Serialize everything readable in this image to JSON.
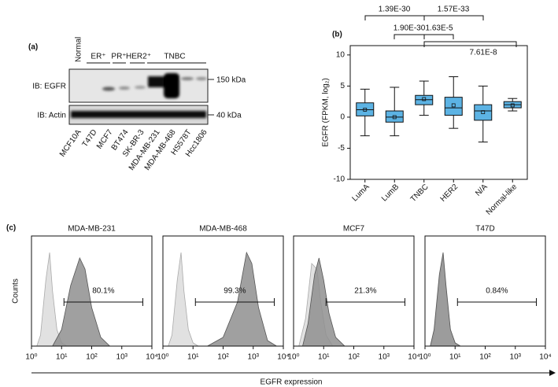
{
  "blot": {
    "label": "(a)",
    "group_top": "Normal",
    "groups": [
      "ER⁺",
      "PR⁺",
      "HER2⁺",
      "TNBC"
    ],
    "rows": [
      "IB: EGFR",
      "IB: Actin"
    ],
    "markers": [
      "150 kDa",
      "40 kDa"
    ],
    "lanes": [
      "MCF10A",
      "T47D",
      "MCF7",
      "BT474",
      "SK-BR-3",
      "MDA-MB-231",
      "MDA-MB-468",
      "HS578T",
      "Hcc1806"
    ]
  },
  "panel_c": {
    "label": "(c)",
    "ylabel": "Counts",
    "xlabel": "EGFR expression"
  },
  "chart_data": [
    {
      "type": "box",
      "panel_label": "(b)",
      "ylabel": "EGFR (FPKM, log₂)",
      "color": "#5cb3e4",
      "categories": [
        "LumA",
        "LumB",
        "TNBC",
        "HER2",
        "N/A",
        "Normal-like"
      ],
      "whisker_low": [
        -3,
        -3,
        0.3,
        -1.8,
        -4,
        1
      ],
      "q1": [
        0.2,
        -0.8,
        2,
        0.3,
        -0.5,
        1.5
      ],
      "median": [
        1.2,
        0,
        2.8,
        1.5,
        1,
        2
      ],
      "q3": [
        2.3,
        1,
        3.5,
        3.2,
        2,
        2.5
      ],
      "whisker_high": [
        4.5,
        4.8,
        5.8,
        6.5,
        5,
        3
      ],
      "mean": [
        1.2,
        0,
        2.9,
        1.9,
        0.8,
        1.9
      ],
      "ylim": [
        -10,
        11.5
      ],
      "yticks": [
        -10,
        -5,
        0,
        5,
        10
      ],
      "annotations": [
        "1.39E-30",
        "1.57E-33",
        "1.90E-30",
        "1.63E-5",
        "7.61E-8"
      ]
    },
    {
      "type": "flow",
      "title": "MDA-MB-231",
      "xlim": [
        1,
        10000
      ],
      "log_x": true,
      "ylim": [
        0,
        100
      ],
      "xticks": [
        {
          "value": 1,
          "label": "10⁰"
        },
        {
          "value": 10,
          "label": "10¹"
        },
        {
          "value": 100,
          "label": "10²"
        },
        {
          "value": 1000,
          "label": "10³"
        },
        {
          "value": 10000,
          "label": "10⁴"
        }
      ],
      "series": [
        {
          "color": "#dcdcdc",
          "x": [
            1.5,
            2,
            3,
            4,
            5,
            7,
            10,
            15
          ],
          "values": [
            0,
            10,
            60,
            85,
            50,
            15,
            3,
            0
          ]
        },
        {
          "color": "#8f8f8f",
          "x": [
            5,
            10,
            20,
            40,
            60,
            100,
            200,
            400
          ],
          "values": [
            0,
            15,
            55,
            80,
            70,
            35,
            8,
            0
          ]
        }
      ],
      "gate": {
        "range": [
          12,
          5000
        ],
        "value": 80.1,
        "value_label": "80.1%"
      }
    },
    {
      "type": "flow",
      "title": "MDA-MB-468",
      "xlim": [
        1,
        10000
      ],
      "log_x": true,
      "ylim": [
        0,
        100
      ],
      "xticks": [
        {
          "value": 1,
          "label": "10⁰"
        },
        {
          "value": 10,
          "label": "10¹"
        },
        {
          "value": 100,
          "label": "10²"
        },
        {
          "value": 1000,
          "label": "10³"
        },
        {
          "value": 10000,
          "label": "10⁴"
        }
      ],
      "series": [
        {
          "color": "#dcdcdc",
          "x": [
            1.5,
            2,
            3,
            4,
            5,
            7,
            10,
            15
          ],
          "values": [
            0,
            10,
            60,
            85,
            50,
            15,
            3,
            0
          ]
        },
        {
          "color": "#8f8f8f",
          "x": [
            30,
            100,
            300,
            600,
            900,
            1500,
            3000,
            6000
          ],
          "values": [
            0,
            8,
            40,
            85,
            75,
            35,
            5,
            0
          ]
        }
      ],
      "gate": {
        "range": [
          12,
          5000
        ],
        "value": 99.3,
        "value_label": "99.3%"
      }
    },
    {
      "type": "flow",
      "title": "MCF7",
      "xlim": [
        1,
        10000
      ],
      "log_x": true,
      "ylim": [
        0,
        100
      ],
      "xticks": [
        {
          "value": 1,
          "label": "10⁰"
        },
        {
          "value": 10,
          "label": "10¹"
        },
        {
          "value": 100,
          "label": "10²"
        },
        {
          "value": 1000,
          "label": "10³"
        },
        {
          "value": 10000,
          "label": "10⁴"
        }
      ],
      "series": [
        {
          "color": "#dcdcdc",
          "x": [
            1.5,
            2.5,
            4,
            6,
            8,
            12,
            20
          ],
          "values": [
            0,
            25,
            75,
            70,
            40,
            10,
            0
          ]
        },
        {
          "color": "#8f8f8f",
          "x": [
            2,
            3,
            5,
            7,
            10,
            15,
            25,
            50
          ],
          "values": [
            0,
            20,
            65,
            80,
            60,
            30,
            8,
            0
          ]
        }
      ],
      "gate": {
        "range": [
          12,
          5000
        ],
        "value": 21.3,
        "value_label": "21.3%"
      }
    },
    {
      "type": "flow",
      "title": "T47D",
      "xlim": [
        1,
        10000
      ],
      "log_x": true,
      "ylim": [
        0,
        100
      ],
      "xticks": [
        {
          "value": 1,
          "label": "10⁰"
        },
        {
          "value": 10,
          "label": "10¹"
        },
        {
          "value": 100,
          "label": "10²"
        },
        {
          "value": 1000,
          "label": "10³"
        },
        {
          "value": 10000,
          "label": "10⁴"
        }
      ],
      "series": [
        {
          "color": "#dcdcdc",
          "x": [
            1.5,
            2,
            3,
            4,
            5,
            7,
            10,
            15
          ],
          "values": [
            0,
            10,
            60,
            82,
            50,
            15,
            3,
            0
          ]
        },
        {
          "color": "#8f8f8f",
          "x": [
            1.5,
            2,
            3,
            4,
            5,
            7,
            10,
            15
          ],
          "values": [
            0,
            15,
            65,
            85,
            55,
            15,
            3,
            0
          ]
        }
      ],
      "gate": {
        "range": [
          12,
          5000
        ],
        "value": 0.84,
        "value_label": "0.84%"
      }
    }
  ]
}
